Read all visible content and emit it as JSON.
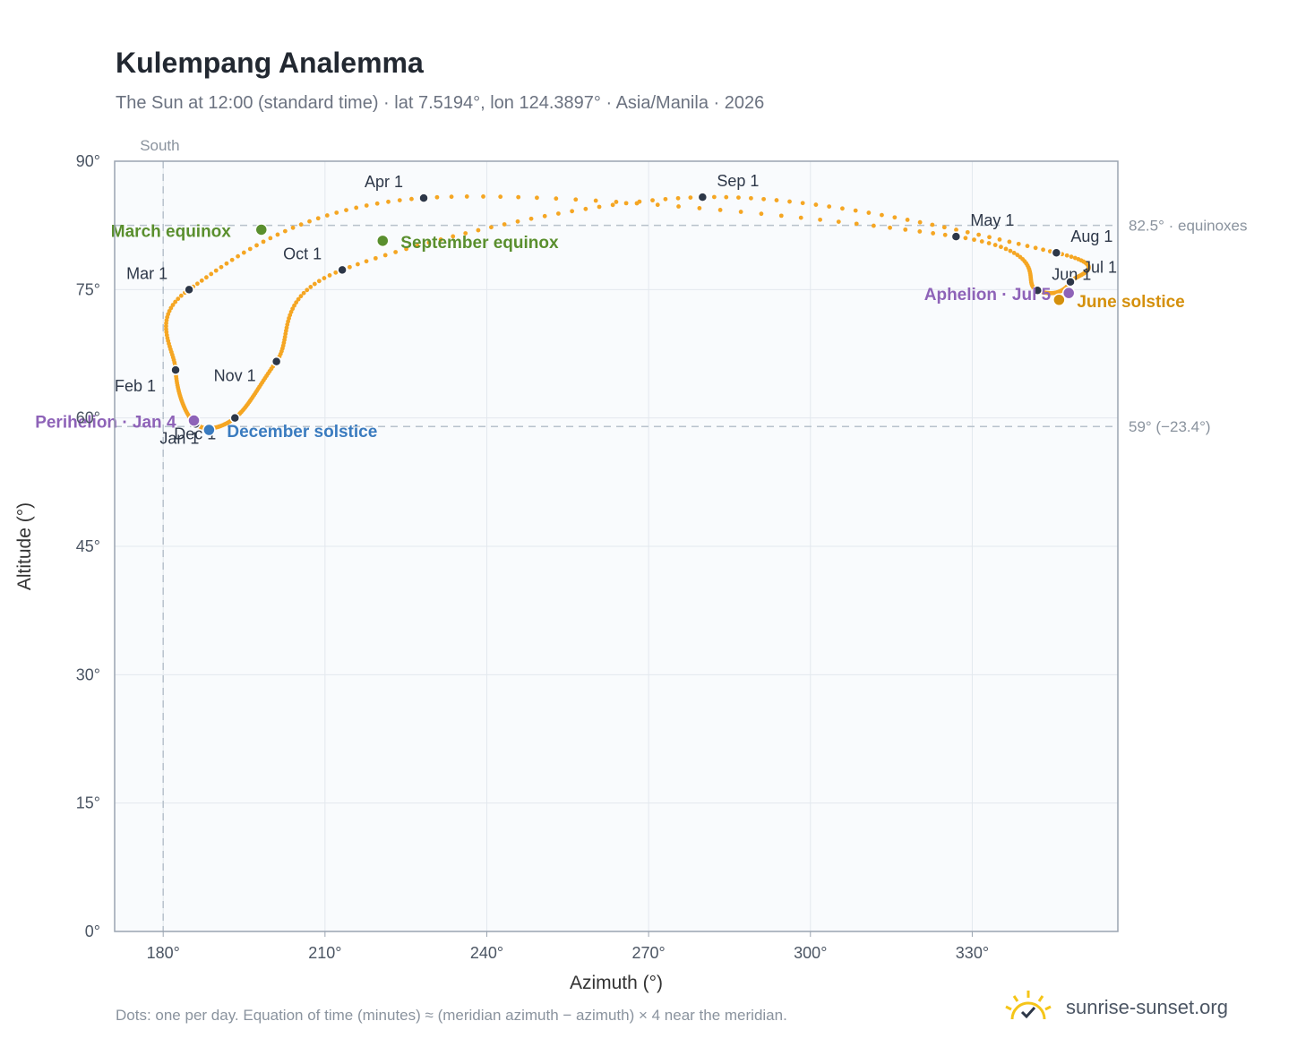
{
  "title": "Kulempang Analemma",
  "subtitle": "The Sun at 12:00 (standard time) · lat 7.5194°, lon 124.3897° · Asia/Manila · 2026",
  "footnote": "Dots: one per day. Equation of time (minutes) ≈ (meridian azimuth − azimuth) × 4 near the meridian.",
  "brand": {
    "text": "sunrise-sunset.org",
    "logo_icon": "sun-check-icon"
  },
  "colors": {
    "path": "#f5a623",
    "month_marker": "#2d3748",
    "equinox": "#5a8f2e",
    "december_solstice": "#3a7bbf",
    "june_solstice": "#d4900c",
    "apsis": "#8e63b8",
    "reference_line": "#b8c2cc",
    "plot_bg": "#f9fbfd",
    "frame": "#9aa4b1"
  },
  "chart_data": {
    "type": "scatter",
    "xlabel": "Azimuth (°)",
    "ylabel": "Altitude (°)",
    "xlim": [
      171,
      357
    ],
    "ylim": [
      0,
      90
    ],
    "x_ticks": [
      180,
      210,
      240,
      270,
      300,
      330
    ],
    "x_tick_labels": [
      "180°",
      "210°",
      "240°",
      "270°",
      "300°",
      "330°"
    ],
    "y_ticks": [
      0,
      15,
      30,
      45,
      60,
      75,
      90
    ],
    "y_tick_labels": [
      "0°",
      "15°",
      "30°",
      "45°",
      "60°",
      "75°",
      "90°"
    ],
    "grid": true,
    "reference_lines": {
      "vertical": {
        "x": 180,
        "label": "South"
      },
      "horizontal": [
        {
          "y": 82.5,
          "label": "82.5° · equinoxes"
        },
        {
          "y": 59,
          "label": "59° (−23.4°)"
        }
      ]
    },
    "month_markers": [
      {
        "label": "Jan 1",
        "x": 186.0,
        "y": 59.3
      },
      {
        "label": "Feb 1",
        "x": 182.3,
        "y": 65.6
      },
      {
        "label": "Mar 1",
        "x": 184.8,
        "y": 75.0
      },
      {
        "label": "Apr 1",
        "x": 228.3,
        "y": 85.7
      },
      {
        "label": "May 1",
        "x": 327.0,
        "y": 81.2
      },
      {
        "label": "Jun 1",
        "x": 342.1,
        "y": 74.9
      },
      {
        "label": "Jul 1",
        "x": 348.2,
        "y": 75.9
      },
      {
        "label": "Aug 1",
        "x": 345.6,
        "y": 79.3
      },
      {
        "label": "Sep 1",
        "x": 280.0,
        "y": 85.8
      },
      {
        "label": "Oct 1",
        "x": 213.2,
        "y": 77.3
      },
      {
        "label": "Nov 1",
        "x": 201.0,
        "y": 66.6
      },
      {
        "label": "Dec 1",
        "x": 193.3,
        "y": 60.0
      }
    ],
    "events": [
      {
        "label": "March equinox",
        "x": 198.2,
        "y": 82.0,
        "color_key": "equinox"
      },
      {
        "label": "September equinox",
        "x": 220.7,
        "y": 80.7,
        "color_key": "equinox"
      },
      {
        "label": "December solstice",
        "x": 188.5,
        "y": 58.6,
        "color_key": "december_solstice"
      },
      {
        "label": "June solstice",
        "x": 346.1,
        "y": 73.8,
        "color_key": "june_solstice"
      },
      {
        "label": "Perihelion · Jan 4",
        "x": 185.7,
        "y": 59.7,
        "color_key": "apsis"
      },
      {
        "label": "Aphelion · Jul 5",
        "x": 347.9,
        "y": 74.6,
        "color_key": "apsis"
      }
    ]
  }
}
